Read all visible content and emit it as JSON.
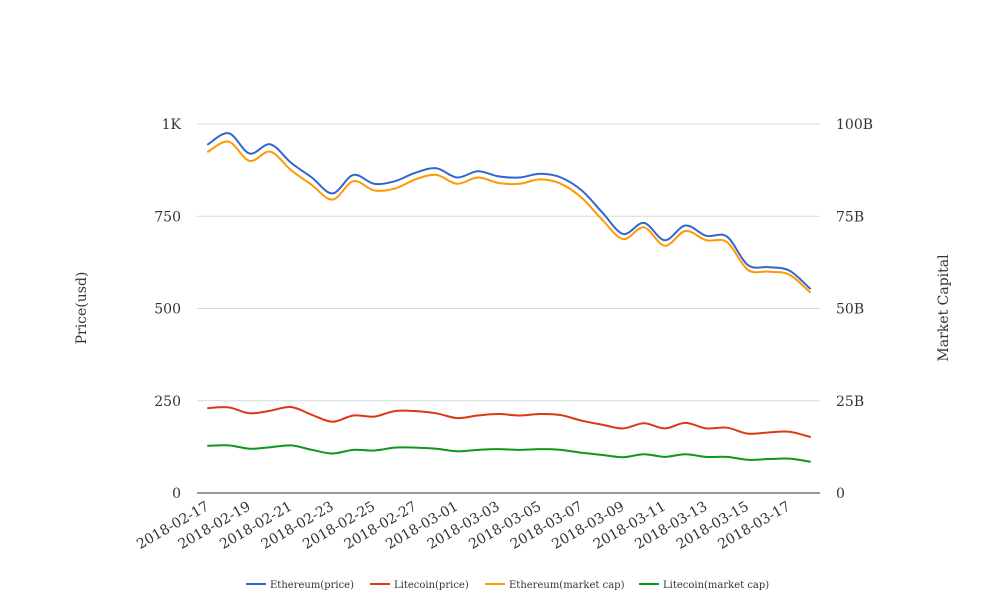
{
  "chart_data": {
    "type": "line",
    "x": [
      "2018-02-17",
      "2018-02-18",
      "2018-02-19",
      "2018-02-20",
      "2018-02-21",
      "2018-02-22",
      "2018-02-23",
      "2018-02-24",
      "2018-02-25",
      "2018-02-26",
      "2018-02-27",
      "2018-02-28",
      "2018-03-01",
      "2018-03-02",
      "2018-03-03",
      "2018-03-04",
      "2018-03-05",
      "2018-03-06",
      "2018-03-07",
      "2018-03-08",
      "2018-03-09",
      "2018-03-10",
      "2018-03-11",
      "2018-03-12",
      "2018-03-13",
      "2018-03-14",
      "2018-03-15",
      "2018-03-16",
      "2018-03-17",
      "2018-03-18"
    ],
    "x_tick_labels": [
      "2018-02-17",
      "2018-02-19",
      "2018-02-21",
      "2018-02-23",
      "2018-02-25",
      "2018-02-27",
      "2018-03-01",
      "2018-03-03",
      "2018-03-05",
      "2018-03-07",
      "2018-03-09",
      "2018-03-11",
      "2018-03-13",
      "2018-03-15",
      "2018-03-17"
    ],
    "ylabel": "Price(usd)",
    "y2label": "Market Capital",
    "ylim": [
      0,
      1000
    ],
    "y2lim": [
      0,
      100000000000
    ],
    "y_ticks": [
      "0",
      "250",
      "500",
      "750",
      "1K"
    ],
    "y2_ticks": [
      "0",
      "25B",
      "50B",
      "75B",
      "100B"
    ],
    "grid": true,
    "legend_position": "bottom",
    "series": [
      {
        "name": "Ethereum(price)",
        "color": "#3366cc",
        "axis": "left",
        "values": [
          945,
          975,
          920,
          945,
          895,
          855,
          812,
          862,
          838,
          845,
          868,
          880,
          855,
          872,
          858,
          855,
          865,
          855,
          820,
          760,
          702,
          732,
          685,
          725,
          697,
          695,
          618,
          612,
          603,
          554
        ]
      },
      {
        "name": "Litecoin(price)",
        "color": "#dc3912",
        "axis": "left",
        "values": [
          230,
          232,
          216,
          223,
          233,
          212,
          193,
          210,
          207,
          222,
          222,
          216,
          203,
          210,
          214,
          210,
          214,
          211,
          196,
          185,
          175,
          189,
          175,
          190,
          175,
          177,
          161,
          164,
          166,
          152
        ]
      },
      {
        "name": "Ethereum(market cap)",
        "color": "#ff9900",
        "axis": "right",
        "values": [
          92500000000,
          95200000000,
          90000000000,
          92500000000,
          87500000000,
          83500000000,
          79500000000,
          84500000000,
          82000000000,
          82500000000,
          85000000000,
          86200000000,
          83800000000,
          85500000000,
          84000000000,
          83800000000,
          85000000000,
          83800000000,
          80000000000,
          74000000000,
          68800000000,
          72000000000,
          67000000000,
          71000000000,
          68500000000,
          68000000000,
          60500000000,
          60000000000,
          59200000000,
          54400000000
        ]
      },
      {
        "name": "Litecoin(market cap)",
        "color": "#109618",
        "axis": "right",
        "values": [
          12800000000,
          12900000000,
          12000000000,
          12400000000,
          12900000000,
          11700000000,
          10700000000,
          11700000000,
          11500000000,
          12300000000,
          12300000000,
          12000000000,
          11300000000,
          11700000000,
          11900000000,
          11700000000,
          11900000000,
          11700000000,
          10900000000,
          10300000000,
          9700000000,
          10500000000,
          9800000000,
          10500000000,
          9800000000,
          9800000000,
          9000000000,
          9200000000,
          9300000000,
          8500000000
        ]
      }
    ]
  }
}
